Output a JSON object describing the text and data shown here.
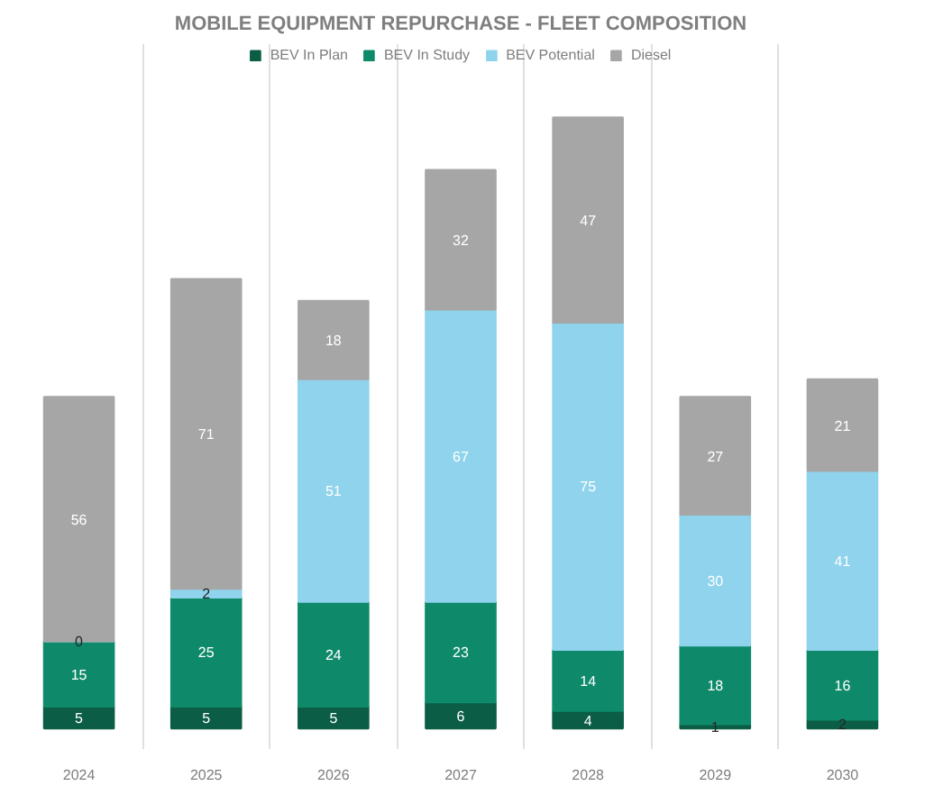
{
  "chart_data": {
    "type": "bar",
    "stacked": true,
    "title": "MOBILE EQUIPMENT REPURCHASE - FLEET COMPOSITION",
    "categories": [
      "2024",
      "2025",
      "2026",
      "2027",
      "2028",
      "2029",
      "2030"
    ],
    "series": [
      {
        "name": "BEV In Plan",
        "color": "#0b5d45",
        "values": [
          5,
          5,
          5,
          6,
          4,
          1,
          2
        ]
      },
      {
        "name": "BEV In Study",
        "color": "#0e8a6a",
        "values": [
          15,
          25,
          24,
          23,
          14,
          18,
          16
        ]
      },
      {
        "name": "BEV Potential",
        "color": "#8fd3ec",
        "values": [
          0,
          2,
          51,
          67,
          75,
          30,
          41
        ]
      },
      {
        "name": "Diesel",
        "color": "#a6a6a6",
        "values": [
          56,
          71,
          18,
          32,
          47,
          27,
          21
        ]
      }
    ],
    "data_labels": true,
    "legend": "top",
    "grid": "x"
  }
}
